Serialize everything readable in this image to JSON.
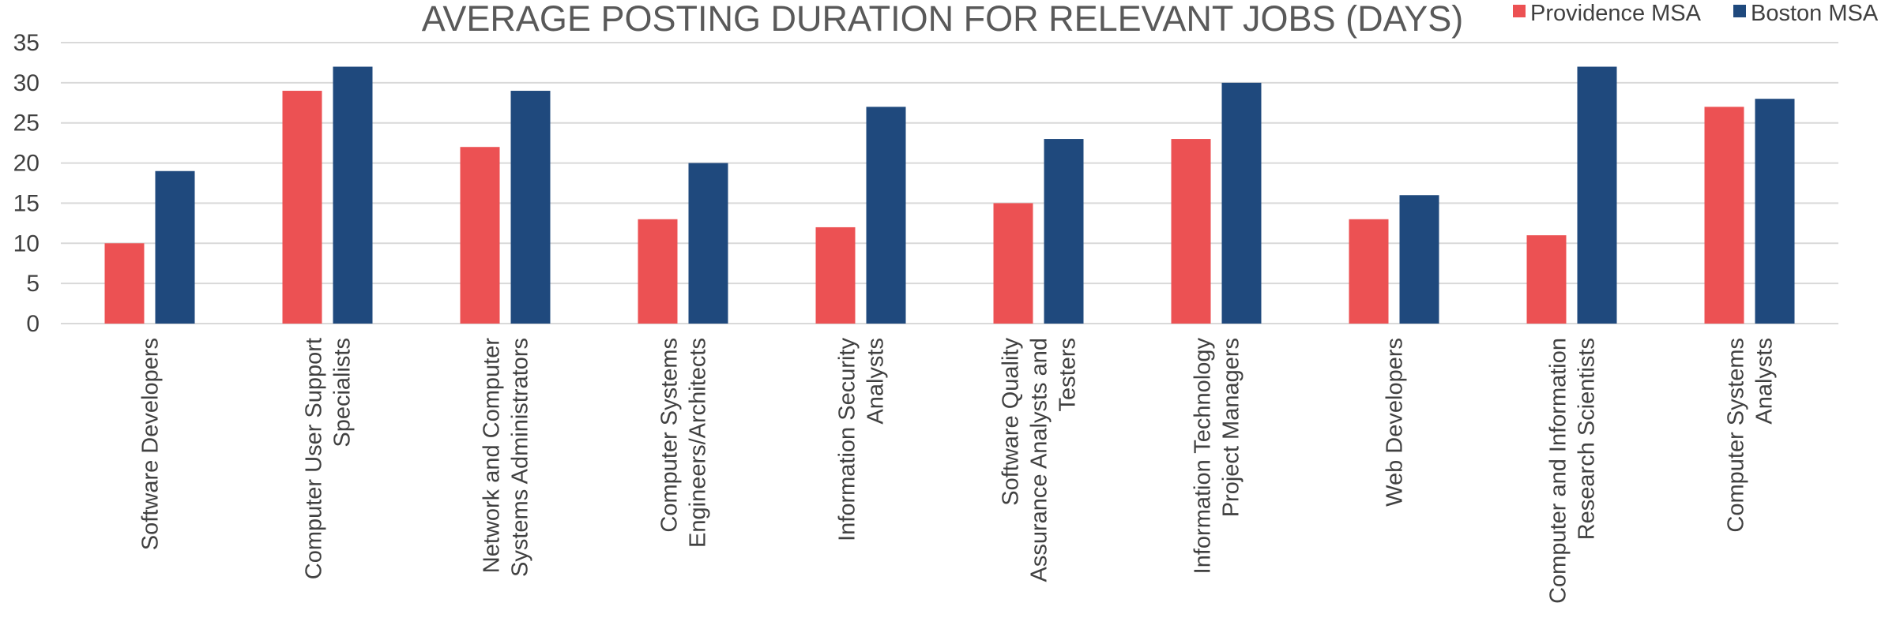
{
  "chart_data": {
    "type": "bar",
    "title": "AVERAGE POSTING DURATION FOR RELEVANT JOBS (DAYS)",
    "xlabel": "",
    "ylabel": "",
    "ylim": [
      0,
      35
    ],
    "yticks": [
      0,
      5,
      10,
      15,
      20,
      25,
      30,
      35
    ],
    "grid": true,
    "legend_position": "top-right",
    "categories": [
      [
        "Software Developers"
      ],
      [
        "Computer User Support",
        "Specialists"
      ],
      [
        "Network and Computer",
        "Systems Administrators"
      ],
      [
        "Computer Systems",
        "Engineers/Architects"
      ],
      [
        "Information Security",
        "Analysts"
      ],
      [
        "Software Quality",
        "Assurance Analysts and",
        "Testers"
      ],
      [
        "Information Technology",
        "Project Managers"
      ],
      [
        "Web Developers"
      ],
      [
        "Computer and Information",
        "Research Scientists"
      ],
      [
        "Computer Systems",
        "Analysts"
      ]
    ],
    "series": [
      {
        "name": "Providence MSA",
        "color": "#ec5153",
        "values": [
          10,
          29,
          22,
          13,
          12,
          15,
          23,
          13,
          11,
          27
        ]
      },
      {
        "name": "Boston MSA",
        "color": "#1f497d",
        "values": [
          19,
          32,
          29,
          20,
          27,
          23,
          30,
          16,
          32,
          28
        ]
      }
    ]
  }
}
